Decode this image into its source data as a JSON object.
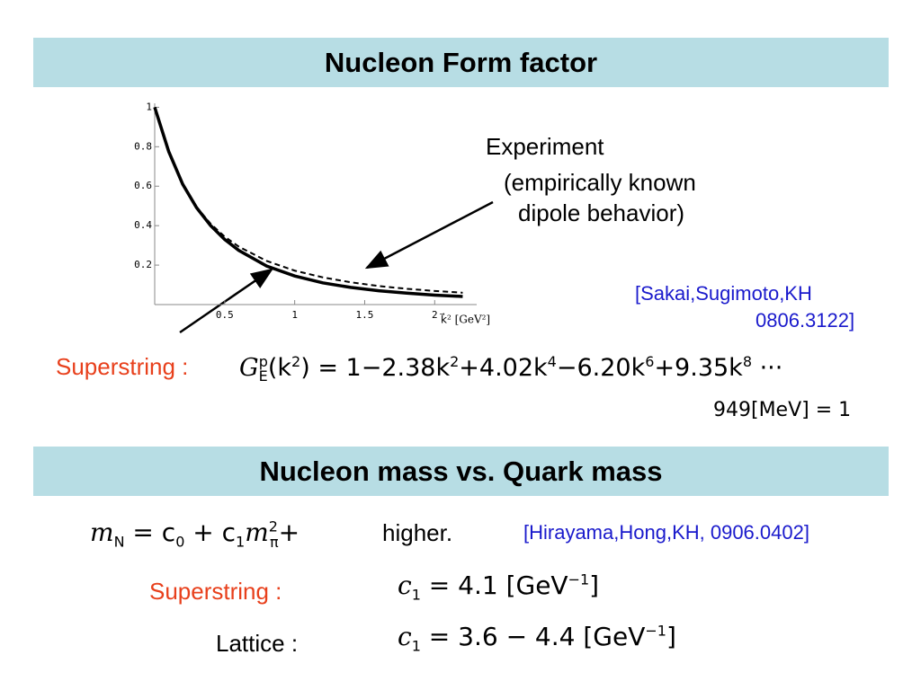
{
  "slide1": {
    "title": "Nucleon Form factor",
    "annotation": [
      "Experiment",
      "(empirically known",
      "dipole behavior)"
    ],
    "reference": [
      "[Sakai,Sugimoto,KH",
      "0806.3122]"
    ],
    "label": "Superstring :",
    "formula": [
      "G",
      "E",
      "p",
      "(k",
      "2",
      ") = 1−2.38k",
      "2",
      "+4.02k",
      "4",
      "−6.20k",
      "6",
      "+9.35k",
      "8",
      " ···"
    ],
    "units": "949[MeV] = 1"
  },
  "chart_data": {
    "type": "line",
    "xlabel": "k⃗² [GeV²]",
    "x": [
      0,
      0.1,
      0.2,
      0.3,
      0.4,
      0.5,
      0.6,
      0.8,
      1.0,
      1.2,
      1.4,
      1.6,
      1.8,
      2.0,
      2.2
    ],
    "series": [
      {
        "color": "#000000",
        "style": "dashed",
        "values": [
          1,
          0.776,
          0.609,
          0.494,
          0.409,
          0.344,
          0.294,
          0.221,
          0.172,
          0.138,
          0.113,
          0.094,
          0.08,
          0.069,
          0.06
        ]
      },
      {
        "color": "#000000",
        "style": "solid",
        "values": [
          1,
          0.776,
          0.61,
          0.49,
          0.4,
          0.33,
          0.275,
          0.195,
          0.145,
          0.11,
          0.087,
          0.07,
          0.058,
          0.048,
          0.041
        ]
      }
    ],
    "xlim": [
      0,
      2.3
    ],
    "ylim": [
      0,
      1.02
    ],
    "xticks": [
      0.5,
      1,
      1.5,
      2
    ],
    "yticks": [
      0.2,
      0.4,
      0.6,
      0.8,
      1
    ]
  },
  "slide2": {
    "title": "Nucleon mass vs. Quark mass",
    "formula": [
      "m",
      "N",
      " = c",
      "0",
      " + c",
      "1",
      "m",
      "2",
      "π",
      "+"
    ],
    "formula_tail": "higher.",
    "reference": "[Hirayama,Hong,KH, 0906.0402]",
    "rows": [
      {
        "label": "Superstring :",
        "value": [
          "c",
          "1",
          " = 4.1 [GeV",
          "−1",
          "]"
        ]
      },
      {
        "label": "Lattice :",
        "value": [
          "c",
          "1",
          " = 3.6 − 4.4 [GeV",
          "−1",
          "]"
        ]
      }
    ]
  }
}
